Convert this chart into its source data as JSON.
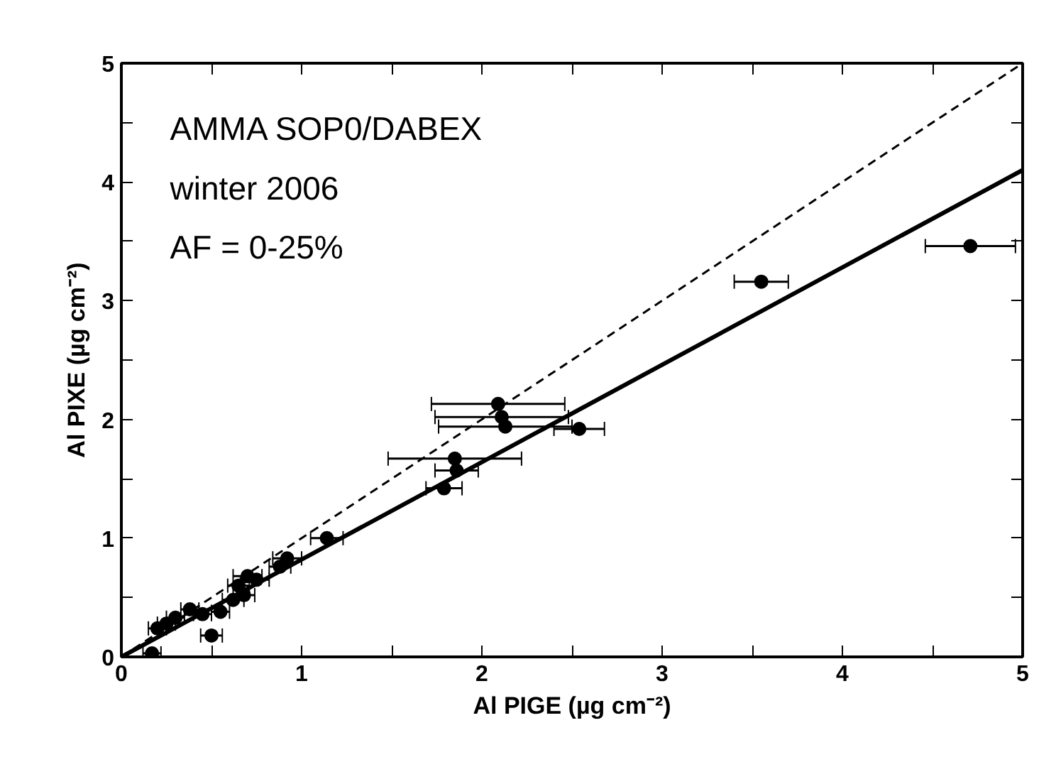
{
  "chart_data": {
    "type": "scatter",
    "xlabel": "Al PIGE (µg cm⁻²)",
    "ylabel": "Al PIXE (µg cm⁻²)",
    "annotations": [
      "AMMA SOP0/DABEX",
      "winter 2006",
      "AF = 0-25%"
    ],
    "xlim": [
      0,
      5
    ],
    "ylim": [
      0,
      5
    ],
    "xticks": [
      0,
      {
        "value": 0.5,
        "label": null
      },
      1,
      {
        "value": 1.5,
        "label": null
      },
      2,
      {
        "value": 2.5,
        "label": null
      },
      3,
      {
        "value": 3.5,
        "label": null
      },
      4,
      {
        "value": 4.5,
        "label": null
      },
      5
    ],
    "yticks": [
      0,
      {
        "value": 0.5,
        "label": null
      },
      1,
      {
        "value": 1.5,
        "label": null
      },
      2,
      {
        "value": 2.5,
        "label": null
      },
      3,
      {
        "value": 3.5,
        "label": null
      },
      4,
      {
        "value": 4.5,
        "label": null
      },
      5
    ],
    "series": [
      {
        "color": "#000000",
        "marker": "circle",
        "x": [
          4.71,
          3.55,
          2.09,
          2.11,
          2.13,
          2.54,
          1.85,
          1.86,
          1.79,
          1.14,
          0.88,
          0.92,
          0.7,
          0.65,
          0.68,
          0.62,
          0.75,
          0.5,
          0.45,
          0.35,
          0.3,
          0.38,
          0.2,
          0.17,
          0.25,
          0.55
        ],
        "values": [
          3.46,
          3.16,
          2.13,
          2.02,
          1.94,
          1.92,
          1.67,
          1.57,
          1.42,
          1.0,
          0.76,
          0.83,
          0.68,
          0.6,
          0.52,
          0.48,
          0.65,
          0.18,
          0.36,
          null,
          0.33,
          0.4,
          0.24,
          0.03,
          0.28,
          0.38
        ],
        "xerrors": [
          0.25,
          0.15,
          0.37,
          0.37,
          0.37,
          0.14,
          0.37,
          0.12,
          0.1,
          0.09,
          0.06,
          0.08,
          0.08,
          0.06,
          0.06,
          0.06,
          0.07,
          0.06,
          0.05,
          null,
          0.05,
          0.05,
          0.05,
          0.05,
          0.05,
          0.05
        ]
      },
      {
        "type": "line",
        "color": "#000000",
        "line_style": "solid",
        "marker": "none",
        "x": [
          0,
          5
        ],
        "values": [
          0,
          4.1
        ]
      },
      {
        "type": "line",
        "color": "#000000",
        "line_style": "dashed",
        "marker": "none",
        "x": [
          0,
          5
        ],
        "values": [
          0,
          5
        ]
      }
    ]
  }
}
